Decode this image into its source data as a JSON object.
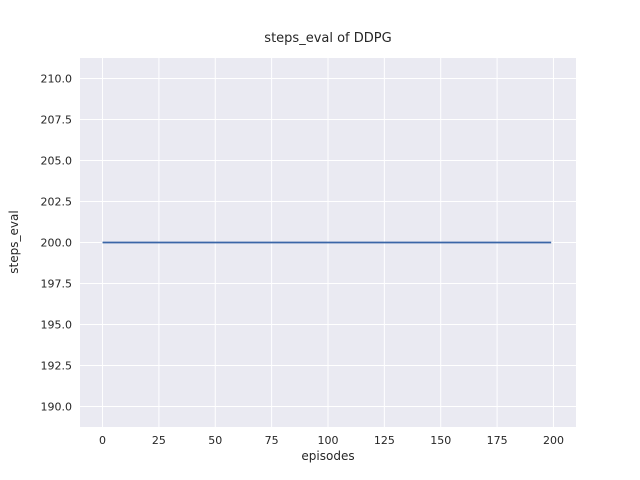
{
  "chart_data": {
    "type": "line",
    "title": "steps_eval of DDPG",
    "xlabel": "episodes",
    "ylabel": "steps_eval",
    "x_ticks": [
      0,
      25,
      50,
      75,
      100,
      125,
      150,
      175,
      200
    ],
    "x_tick_labels": [
      "0",
      "25",
      "50",
      "75",
      "100",
      "125",
      "150",
      "175",
      "200"
    ],
    "y_ticks": [
      190.0,
      192.5,
      195.0,
      197.5,
      200.0,
      202.5,
      205.0,
      207.5,
      210.0
    ],
    "y_tick_labels": [
      "190.0",
      "192.5",
      "195.0",
      "197.5",
      "200.0",
      "202.5",
      "205.0",
      "207.5",
      "210.0"
    ],
    "xlim": [
      -10,
      210
    ],
    "ylim": [
      188.75,
      211.25
    ],
    "grid": true,
    "legend": "none",
    "series": [
      {
        "name": "steps_eval",
        "x": [
          0,
          199
        ],
        "y": [
          200,
          200
        ],
        "note": "constant value 200 for all episodes 0-199",
        "color": "#3a66a7"
      }
    ],
    "colors": {
      "plot_background": "#eaeaf2",
      "grid": "#ffffff",
      "text": "#262626",
      "figure_background": "#ffffff"
    }
  }
}
